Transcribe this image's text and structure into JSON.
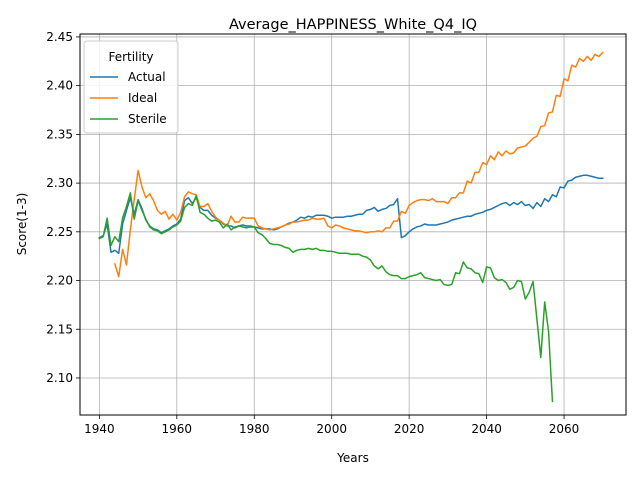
{
  "chart_data": {
    "type": "line",
    "title": "Average_HAPPINESS_White_Q4_IQ",
    "xlabel": "Years",
    "ylabel": "Score(1-3)",
    "xlim": [
      1935,
      2076
    ],
    "ylim": [
      2.062,
      2.453
    ],
    "xticks": [
      1940,
      1960,
      1980,
      2000,
      2020,
      2040,
      2060
    ],
    "yticks": [
      2.1,
      2.15,
      2.2,
      2.25,
      2.3,
      2.35,
      2.4,
      2.45
    ],
    "xtick_labels": [
      "1940",
      "1960",
      "1980",
      "2000",
      "2020",
      "2040",
      "2060"
    ],
    "ytick_labels": [
      "2.10",
      "2.15",
      "2.20",
      "2.25",
      "2.30",
      "2.35",
      "2.40",
      "2.45"
    ],
    "grid": true,
    "legend": {
      "title": "Fertility",
      "position": "upper-left"
    },
    "series": [
      {
        "name": "Actual",
        "color": "#1f77b4",
        "x": [
          1940,
          1941,
          1942,
          1943,
          1944,
          1945,
          1946,
          1947,
          1948,
          1949,
          1950,
          1951,
          1952,
          1953,
          1954,
          1955,
          1956,
          1957,
          1958,
          1959,
          1960,
          1961,
          1962,
          1963,
          1964,
          1965,
          1966,
          1967,
          1968,
          1969,
          1970,
          1971,
          1972,
          1973,
          1974,
          1975,
          1976,
          1977,
          1978,
          1979,
          1980,
          1981,
          1982,
          1983,
          1984,
          1985,
          1986,
          1987,
          1988,
          1989,
          1990,
          1991,
          1992,
          1993,
          1994,
          1995,
          1996,
          1997,
          1998,
          1999,
          2000,
          2001,
          2002,
          2003,
          2004,
          2005,
          2006,
          2007,
          2008,
          2009,
          2010,
          2011,
          2012,
          2013,
          2014,
          2015,
          2016,
          2017,
          2018,
          2019,
          2020,
          2021,
          2022,
          2023,
          2024,
          2025,
          2026,
          2027,
          2028,
          2029,
          2030,
          2031,
          2032,
          2033,
          2034,
          2035,
          2036,
          2037,
          2038,
          2039,
          2040,
          2041,
          2042,
          2043,
          2044,
          2045,
          2046,
          2047,
          2048,
          2049,
          2050,
          2051,
          2052,
          2053,
          2054,
          2055,
          2056,
          2057,
          2058,
          2059,
          2060,
          2061,
          2062,
          2063,
          2064,
          2065,
          2066,
          2067,
          2068,
          2069,
          2070
        ],
        "values": [
          2.244,
          2.246,
          2.258,
          2.229,
          2.231,
          2.228,
          2.258,
          2.272,
          2.285,
          2.268,
          2.283,
          2.274,
          2.262,
          2.256,
          2.253,
          2.252,
          2.249,
          2.251,
          2.253,
          2.256,
          2.258,
          2.263,
          2.282,
          2.285,
          2.279,
          2.285,
          2.275,
          2.272,
          2.272,
          2.267,
          2.264,
          2.262,
          2.258,
          2.256,
          2.256,
          2.254,
          2.256,
          2.257,
          2.256,
          2.256,
          2.255,
          2.254,
          2.253,
          2.253,
          2.253,
          2.252,
          2.253,
          2.255,
          2.257,
          2.259,
          2.26,
          2.262,
          2.265,
          2.264,
          2.266,
          2.265,
          2.267,
          2.267,
          2.267,
          2.266,
          2.264,
          2.265,
          2.265,
          2.265,
          2.266,
          2.266,
          2.267,
          2.268,
          2.268,
          2.272,
          2.273,
          2.275,
          2.271,
          2.273,
          2.274,
          2.277,
          2.278,
          2.284,
          2.244,
          2.246,
          2.25,
          2.253,
          2.255,
          2.256,
          2.258,
          2.257,
          2.257,
          2.257,
          2.258,
          2.259,
          2.26,
          2.262,
          2.263,
          2.264,
          2.265,
          2.266,
          2.266,
          2.268,
          2.269,
          2.27,
          2.272,
          2.273,
          2.275,
          2.277,
          2.279,
          2.28,
          2.277,
          2.28,
          2.278,
          2.281,
          2.277,
          2.278,
          2.274,
          2.28,
          2.276,
          2.284,
          2.281,
          2.288,
          2.286,
          2.296,
          2.295,
          2.302,
          2.303,
          2.306,
          2.307,
          2.308,
          2.308,
          2.307,
          2.306,
          2.305,
          2.305
        ]
      },
      {
        "name": "Ideal",
        "color": "#ff7f0e",
        "x": [
          1944,
          1945,
          1946,
          1947,
          1948,
          1949,
          1950,
          1951,
          1952,
          1953,
          1954,
          1955,
          1956,
          1957,
          1958,
          1959,
          1960,
          1961,
          1962,
          1963,
          1964,
          1965,
          1966,
          1967,
          1968,
          1969,
          1970,
          1971,
          1972,
          1973,
          1974,
          1975,
          1976,
          1977,
          1978,
          1979,
          1980,
          1981,
          1982,
          1983,
          1984,
          1985,
          1986,
          1987,
          1988,
          1989,
          1990,
          1991,
          1992,
          1993,
          1994,
          1995,
          1996,
          1997,
          1998,
          1999,
          2000,
          2001,
          2002,
          2003,
          2004,
          2005,
          2006,
          2007,
          2008,
          2009,
          2010,
          2011,
          2012,
          2013,
          2014,
          2015,
          2016,
          2017,
          2018,
          2019,
          2020,
          2021,
          2022,
          2023,
          2024,
          2025,
          2026,
          2027,
          2028,
          2029,
          2030,
          2031,
          2032,
          2033,
          2034,
          2035,
          2036,
          2037,
          2038,
          2039,
          2040,
          2041,
          2042,
          2043,
          2044,
          2045,
          2046,
          2047,
          2048,
          2049,
          2050,
          2051,
          2052,
          2053,
          2054,
          2055,
          2056,
          2057,
          2058,
          2059,
          2060,
          2061,
          2062,
          2063,
          2064,
          2065,
          2066,
          2067,
          2068,
          2069,
          2070
        ],
        "values": [
          2.217,
          2.204,
          2.232,
          2.216,
          2.252,
          2.283,
          2.313,
          2.296,
          2.285,
          2.289,
          2.282,
          2.272,
          2.268,
          2.271,
          2.263,
          2.268,
          2.262,
          2.27,
          2.286,
          2.291,
          2.289,
          2.288,
          2.276,
          2.276,
          2.279,
          2.271,
          2.265,
          2.262,
          2.259,
          2.256,
          2.266,
          2.26,
          2.26,
          2.265,
          2.264,
          2.264,
          2.264,
          2.256,
          2.254,
          2.253,
          2.252,
          2.253,
          2.254,
          2.255,
          2.257,
          2.258,
          2.26,
          2.26,
          2.261,
          2.262,
          2.262,
          2.264,
          2.263,
          2.263,
          2.264,
          2.256,
          2.254,
          2.257,
          2.256,
          2.254,
          2.253,
          2.252,
          2.251,
          2.251,
          2.25,
          2.249,
          2.25,
          2.25,
          2.251,
          2.25,
          2.254,
          2.254,
          2.261,
          2.261,
          2.271,
          2.269,
          2.277,
          2.28,
          2.282,
          2.283,
          2.283,
          2.282,
          2.284,
          2.281,
          2.281,
          2.281,
          2.279,
          2.285,
          2.285,
          2.29,
          2.29,
          2.302,
          2.3,
          2.311,
          2.311,
          2.321,
          2.319,
          2.328,
          2.324,
          2.332,
          2.328,
          2.333,
          2.33,
          2.331,
          2.336,
          2.337,
          2.338,
          2.342,
          2.346,
          2.348,
          2.358,
          2.359,
          2.372,
          2.373,
          2.39,
          2.389,
          2.407,
          2.405,
          2.421,
          2.419,
          2.428,
          2.425,
          2.43,
          2.426,
          2.432,
          2.43,
          2.434
        ]
      },
      {
        "name": "Sterile",
        "color": "#2ca02c",
        "x": [
          1940,
          1941,
          1942,
          1943,
          1944,
          1945,
          1946,
          1947,
          1948,
          1949,
          1950,
          1951,
          1952,
          1953,
          1954,
          1955,
          1956,
          1957,
          1958,
          1959,
          1960,
          1961,
          1962,
          1963,
          1964,
          1965,
          1966,
          1967,
          1968,
          1969,
          1970,
          1971,
          1972,
          1973,
          1974,
          1975,
          1976,
          1977,
          1978,
          1979,
          1980,
          1981,
          1982,
          1983,
          1984,
          1985,
          1986,
          1987,
          1988,
          1989,
          1990,
          1991,
          1992,
          1993,
          1994,
          1995,
          1996,
          1997,
          1998,
          1999,
          2000,
          2001,
          2002,
          2003,
          2004,
          2005,
          2006,
          2007,
          2008,
          2009,
          2010,
          2011,
          2012,
          2013,
          2014,
          2015,
          2016,
          2017,
          2018,
          2019,
          2020,
          2021,
          2022,
          2023,
          2024,
          2025,
          2026,
          2027,
          2028,
          2029,
          2030,
          2031,
          2032,
          2033,
          2034,
          2035,
          2036,
          2037,
          2038,
          2039,
          2040,
          2041,
          2042,
          2043,
          2044,
          2045,
          2046,
          2047,
          2048,
          2049,
          2050,
          2051,
          2052,
          2053,
          2054,
          2055,
          2056,
          2057
        ],
        "values": [
          2.243,
          2.245,
          2.264,
          2.236,
          2.245,
          2.24,
          2.264,
          2.276,
          2.29,
          2.263,
          2.282,
          2.272,
          2.263,
          2.255,
          2.252,
          2.251,
          2.248,
          2.25,
          2.252,
          2.255,
          2.257,
          2.261,
          2.275,
          2.279,
          2.277,
          2.287,
          2.27,
          2.268,
          2.264,
          2.261,
          2.262,
          2.26,
          2.254,
          2.258,
          2.252,
          2.255,
          2.256,
          2.255,
          2.254,
          2.255,
          2.255,
          2.249,
          2.247,
          2.243,
          2.238,
          2.237,
          2.237,
          2.236,
          2.234,
          2.233,
          2.229,
          2.231,
          2.232,
          2.232,
          2.233,
          2.232,
          2.233,
          2.231,
          2.231,
          2.23,
          2.23,
          2.229,
          2.228,
          2.228,
          2.228,
          2.227,
          2.227,
          2.227,
          2.225,
          2.224,
          2.221,
          2.215,
          2.212,
          2.215,
          2.209,
          2.206,
          2.205,
          2.205,
          2.202,
          2.202,
          2.204,
          2.205,
          2.206,
          2.208,
          2.203,
          2.202,
          2.201,
          2.2,
          2.201,
          2.196,
          2.195,
          2.196,
          2.208,
          2.207,
          2.219,
          2.213,
          2.212,
          2.208,
          2.207,
          2.198,
          2.214,
          2.213,
          2.203,
          2.2,
          2.201,
          2.198,
          2.191,
          2.193,
          2.2,
          2.199,
          2.181,
          2.188,
          2.199,
          2.16,
          2.121,
          2.178,
          2.148,
          2.076
        ]
      }
    ]
  }
}
